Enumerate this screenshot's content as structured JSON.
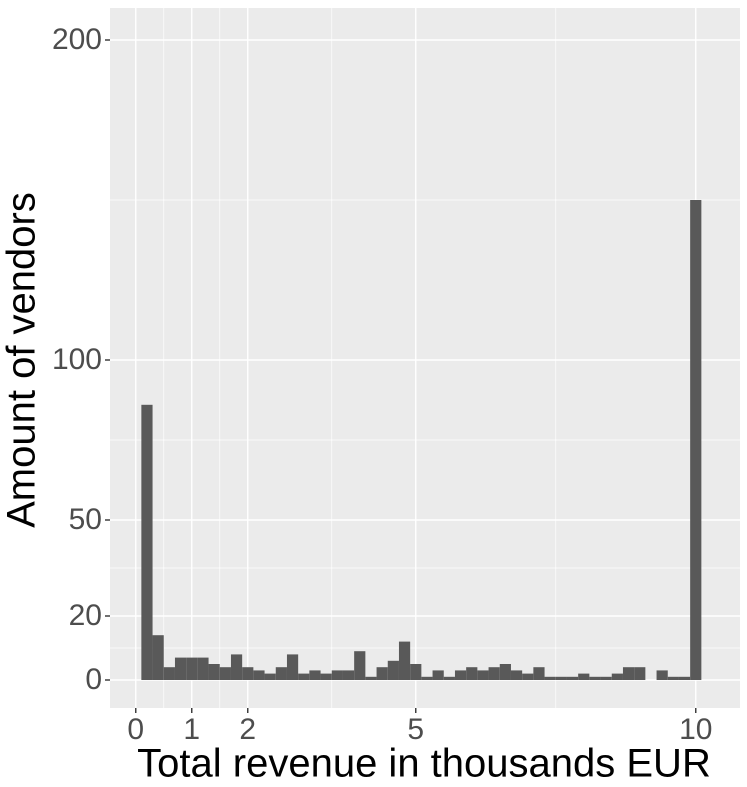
{
  "chart_data": {
    "type": "histogram",
    "x_label": "Total revenue in thousands EUR",
    "y_label": "Amount of vendors",
    "bins": [
      0.1,
      0.3,
      0.5,
      0.7,
      0.9,
      1.1,
      1.3,
      1.5,
      1.7,
      1.9,
      2.1,
      2.3,
      2.5,
      2.7,
      2.9,
      3.1,
      3.3,
      3.5,
      3.7,
      3.9,
      4.1,
      4.3,
      4.5,
      4.7,
      4.9,
      5.1,
      5.3,
      5.5,
      5.7,
      5.9,
      6.1,
      6.3,
      6.5,
      6.7,
      6.9,
      7.1,
      7.3,
      7.5,
      7.7,
      7.9,
      8.1,
      8.3,
      8.5,
      8.7,
      8.9,
      9.1,
      9.3,
      9.5,
      9.7,
      9.9,
      10.1
    ],
    "values": [
      86,
      14,
      4,
      7,
      7,
      7,
      5,
      4,
      8,
      4,
      3,
      2,
      4,
      8,
      2,
      3,
      2,
      3,
      3,
      9,
      1,
      4,
      6,
      12,
      5,
      1,
      3,
      1,
      3,
      4,
      3,
      4,
      5,
      3,
      2,
      4,
      1,
      1,
      1,
      2,
      1,
      1,
      2,
      4,
      4,
      0,
      3,
      1,
      1,
      150
    ],
    "color": "#595959",
    "xlim": [
      -0.46,
      10.79
    ],
    "xticks": [
      0,
      1,
      2,
      5,
      10
    ],
    "minor_xticks": [
      0.5,
      1.5,
      3.5,
      7.5
    ],
    "ylim": [
      -8.75,
      210
    ],
    "yticks": [
      0,
      20,
      50,
      100,
      200
    ],
    "minor_yticks": [
      10,
      35,
      75,
      150
    ],
    "grid": true
  }
}
